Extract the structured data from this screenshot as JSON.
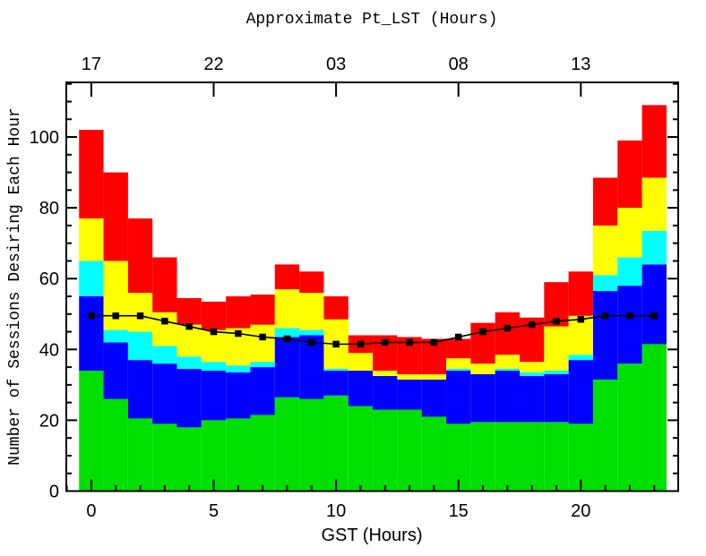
{
  "title_top": "Approximate Pt_LST (Hours)",
  "axes": {
    "x_bottom": {
      "label": "GST (Hours)",
      "major_ticks": [
        0,
        5,
        10,
        15,
        20
      ],
      "major_tick_labels": [
        "0",
        "5",
        "10",
        "15",
        "20"
      ],
      "minor_tick_step_hours": 1,
      "range_hours": [
        -1,
        24
      ]
    },
    "x_top": {
      "tick_positions_gst": [
        0,
        5,
        10,
        15,
        20
      ],
      "tick_labels": [
        "17",
        "22",
        "03",
        "08",
        "13"
      ]
    },
    "y_left": {
      "label": "Number of Sessions Desiring Each Hour",
      "major_ticks": [
        0,
        20,
        40,
        60,
        80,
        100
      ],
      "major_tick_labels": [
        "0",
        "20",
        "40",
        "60",
        "80",
        "100"
      ],
      "minor_tick_step": 5,
      "range": [
        0,
        115.4
      ]
    }
  },
  "chart_data": {
    "type": "bar",
    "subtype": "stacked-bars-with-overlaid-line",
    "title": "Approximate Pt_LST (Hours)",
    "xlabel": "GST (Hours)",
    "ylabel": "Number of Sessions Desiring Each Hour",
    "x": [
      0,
      1,
      2,
      3,
      4,
      5,
      6,
      7,
      8,
      9,
      10,
      11,
      12,
      13,
      14,
      15,
      16,
      17,
      18,
      19,
      20,
      21,
      22,
      23
    ],
    "bar_width_hours": 1,
    "stack_order_bottom_to_top": [
      "green",
      "blue",
      "cyan",
      "yellow",
      "red"
    ],
    "series": [
      {
        "name": "green",
        "color": "#00e000",
        "values": [
          34,
          26,
          20.5,
          19,
          18,
          20,
          20.5,
          21.5,
          26.5,
          26,
          27,
          24,
          23,
          23,
          21,
          19,
          19.5,
          19.5,
          19.5,
          19.5,
          19,
          31.5,
          36,
          41.5
        ]
      },
      {
        "name": "blue",
        "color": "#0000ff",
        "values": [
          21,
          16,
          16.5,
          17,
          16.5,
          14,
          13,
          13.5,
          17,
          18,
          7,
          10,
          9.5,
          8.5,
          10.5,
          15,
          13.5,
          14.5,
          13,
          13.5,
          18,
          25,
          22,
          22.5
        ]
      },
      {
        "name": "cyan",
        "color": "#00ffff",
        "values": [
          10,
          3.5,
          8,
          5,
          3.5,
          2.5,
          2,
          1.5,
          2.5,
          1.5,
          0.5,
          0,
          0,
          0,
          0,
          0.5,
          0,
          0.5,
          1,
          1,
          1.5,
          4.5,
          8,
          9.5
        ]
      },
      {
        "name": "yellow",
        "color": "#ffff00",
        "values": [
          12,
          19.5,
          11,
          9.5,
          9,
          9,
          10.5,
          10.5,
          11,
          10.5,
          14,
          5,
          1.5,
          1.5,
          1.5,
          3,
          3,
          4,
          3,
          12.5,
          11,
          14,
          14,
          15
        ]
      },
      {
        "name": "red",
        "color": "#ff0000",
        "values": [
          25,
          25,
          21,
          15.5,
          7.5,
          8,
          9,
          8.5,
          7,
          6,
          6.5,
          5,
          10,
          10.5,
          10,
          5.5,
          11.5,
          12,
          12.5,
          12.5,
          12.5,
          13.5,
          19,
          20.5
        ]
      }
    ],
    "line_series": {
      "name": "sessions-line",
      "color": "#000000",
      "marker": "filled-square",
      "values": [
        49.5,
        49.5,
        49.5,
        48,
        46.5,
        45,
        44.5,
        43.5,
        43,
        42,
        41.5,
        41.5,
        42,
        42,
        42,
        43.5,
        45,
        46,
        47,
        48,
        48.5,
        49.5,
        49.5,
        49.5
      ]
    },
    "totals": [
      102,
      90,
      77,
      66,
      54.5,
      53.5,
      55,
      55.5,
      64,
      62,
      55,
      44,
      44,
      43.5,
      43,
      43,
      47.5,
      50.5,
      49,
      59,
      62,
      88.5,
      99,
      109
    ],
    "grid": false,
    "legend": false,
    "background_color": "#ffffff",
    "axis_color": "#000000"
  }
}
